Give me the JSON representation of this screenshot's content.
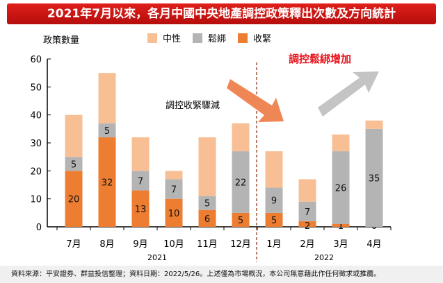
{
  "chart_data": {
    "type": "bar",
    "stacked": true,
    "title": "2021年7月以來，各月中國中央地產調控政策釋出次數及方向統計",
    "ylabel": "政策數量",
    "ylim": [
      0,
      60
    ],
    "yticks": [
      0,
      10,
      20,
      30,
      40,
      50,
      60
    ],
    "categories": [
      "7月",
      "8月",
      "9月",
      "10月",
      "11月",
      "12月",
      "1月",
      "2月",
      "3月",
      "4月"
    ],
    "year_labels": [
      "2021",
      "2022"
    ],
    "series": [
      {
        "name": "收緊",
        "color": "#ed7d31",
        "values": [
          20,
          32,
          13,
          10,
          6,
          5,
          5,
          2,
          1,
          0
        ]
      },
      {
        "name": "鬆綁",
        "color": "#b4b4b4",
        "values": [
          5,
          5,
          7,
          7,
          5,
          22,
          9,
          7,
          26,
          35
        ]
      },
      {
        "name": "中性",
        "color": "#f8bf95",
        "values": [
          15,
          18,
          12,
          3,
          21,
          10,
          13,
          8,
          6,
          3
        ]
      }
    ],
    "legend_order": [
      "中性",
      "鬆綁",
      "收緊"
    ],
    "annotations": {
      "down": "調控收緊驟減",
      "up": "調控鬆綁增加"
    }
  },
  "footer": "資料來源：平安證券、群益投信整理；資料日期：2022/5/26。上述僅為市場概況，本公司無意藉此作任何徵求或推薦。"
}
